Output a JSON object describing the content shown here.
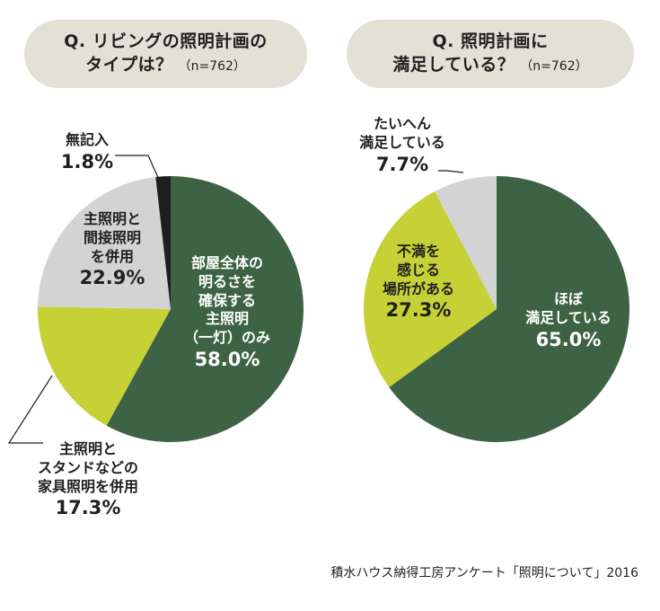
{
  "chart_data": [
    {
      "type": "pie",
      "title_line1": "Q. リビングの照明計画の",
      "title_line2": "タイプは？",
      "n_label": "（n=762）",
      "slices": [
        {
          "name_lines": [
            "部屋全体の",
            "明るさを",
            "確保する",
            "主照明",
            "（一灯）のみ"
          ],
          "value": 58.0,
          "pct_label": "58.0%",
          "color": "#3d6344"
        },
        {
          "name_lines": [
            "主照明と",
            "スタンドなどの",
            "家具照明を併用"
          ],
          "value": 17.3,
          "pct_label": "17.3%",
          "color": "#c6d136"
        },
        {
          "name_lines": [
            "主照明と",
            "間接照明",
            "を併用"
          ],
          "value": 22.9,
          "pct_label": "22.9%",
          "color": "#d3d3d3"
        },
        {
          "name_lines": [
            "無記入"
          ],
          "value": 1.8,
          "pct_label": "1.8%",
          "color": "#1e1e1e"
        }
      ]
    },
    {
      "type": "pie",
      "title_line1": "Q. 照明計画に",
      "title_line2": "満足している？",
      "n_label": "（n=762）",
      "slices": [
        {
          "name_lines": [
            "ほぼ",
            "満足している"
          ],
          "value": 65.0,
          "pct_label": "65.0%",
          "color": "#3d6344"
        },
        {
          "name_lines": [
            "不満を",
            "感じる",
            "場所がある"
          ],
          "value": 27.3,
          "pct_label": "27.3%",
          "color": "#c6d136"
        },
        {
          "name_lines": [
            "たいへん",
            "満足している"
          ],
          "value": 7.7,
          "pct_label": "7.7%",
          "color": "#d3d3d3"
        }
      ]
    }
  ],
  "source": "積水ハウス納得工房アンケート「照明について」2016"
}
